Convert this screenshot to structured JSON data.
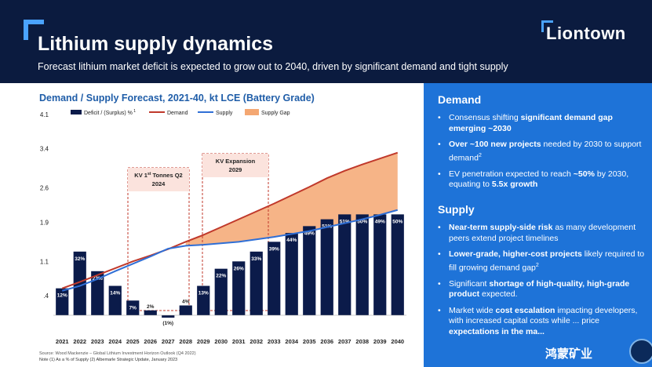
{
  "header": {
    "title": "Lithium supply dynamics",
    "subtitle": "Forecast lithium market deficit is expected to grow out to 2040, driven by significant demand and tight supply",
    "logo_text": "Liontown"
  },
  "colors": {
    "header_bg": "#0b1b3f",
    "accent": "#1e73d8",
    "bar": "#0b1b4a",
    "demand": "#c0392b",
    "supply": "#2f6fd6",
    "gap": "#f4a772"
  },
  "chart_data": {
    "type": "bar",
    "title": "Demand / Supply Forecast, 2021-40, kt LCE (Battery Grade)",
    "legend": [
      "Deficit / (Surplus) %",
      "Demand",
      "Supply",
      "Supply Gap"
    ],
    "legend_superscript": "1",
    "legend_placement": "top",
    "yticks": [
      "4.1",
      "3.4",
      "2.6",
      "1.9",
      "1.1",
      ".4"
    ],
    "ylim": [
      0.0,
      4.1
    ],
    "categories": [
      "2021",
      "2022",
      "2023",
      "2024",
      "2025",
      "2026",
      "2027",
      "2028",
      "2029",
      "2030",
      "2031",
      "2032",
      "2033",
      "2034",
      "2035",
      "2036",
      "2037",
      "2038",
      "2039",
      "2040"
    ],
    "bar_values": [
      0.55,
      1.3,
      0.9,
      0.6,
      0.3,
      0.1,
      -0.05,
      0.2,
      0.6,
      0.95,
      1.1,
      1.3,
      1.5,
      1.68,
      1.82,
      1.96,
      2.06,
      2.06,
      2.06,
      2.06
    ],
    "bar_labels": [
      "12%",
      "32%",
      "22%",
      "14%",
      "7%",
      "2%",
      "(1%)",
      "4%",
      "13%",
      "22%",
      "26%",
      "33%",
      "39%",
      "44%",
      "49%",
      "51%",
      "51%",
      "50%",
      "49%",
      "50%"
    ],
    "series": [
      {
        "name": "Demand",
        "values": [
          0.55,
          0.68,
          0.82,
          0.96,
          1.1,
          1.22,
          1.35,
          1.5,
          1.64,
          1.8,
          1.96,
          2.12,
          2.28,
          2.45,
          2.62,
          2.8,
          2.95,
          3.08,
          3.2,
          3.32
        ]
      },
      {
        "name": "Supply",
        "values": [
          0.5,
          0.6,
          0.74,
          0.9,
          1.05,
          1.2,
          1.36,
          1.42,
          1.44,
          1.47,
          1.5,
          1.55,
          1.6,
          1.66,
          1.72,
          1.8,
          1.88,
          1.96,
          2.05,
          2.15
        ]
      }
    ],
    "annotations": [
      {
        "text": "KV 1st Tonnes Q2 2024",
        "lines": [
          "KV 1",
          "st",
          " Tonnes Q2",
          "2024"
        ]
      },
      {
        "text": "KV Expansion 2029",
        "lines": [
          "KV Expansion",
          "2029"
        ]
      }
    ]
  },
  "panel": {
    "demand_heading": "Demand",
    "demand_bullets": [
      {
        "pre": "Consensus shifting ",
        "bold": "significant demand gap emerging ~2030",
        "post": ""
      },
      {
        "pre": "",
        "bold": "Over ~100 new projects",
        "post": " needed by 2030 to support demand",
        "sup": "2"
      },
      {
        "pre": "EV penetration expected to reach ",
        "bold": "~50%",
        "post": " by 2030, equating to ",
        "bold2": "5.5x growth"
      }
    ],
    "supply_heading": "Supply",
    "supply_bullets": [
      {
        "pre": "",
        "bold": "Near-term supply-side risk",
        "post": " as many development peers extend project timelines"
      },
      {
        "pre": "",
        "bold": "Lower-grade, higher-cost projects",
        "post": " likely required to fill growing demand gap",
        "sup": "2"
      },
      {
        "pre": "Significant ",
        "bold": "shortage of high-quality, high-grade product",
        "post": " expected."
      },
      {
        "pre": "Market wide ",
        "bold": "cost escalation",
        "post": " impacting developers, with increased capital costs while ... price ",
        "bold2": "expectations in the ma..."
      }
    ]
  },
  "footer": {
    "source": "Source: Wood Mackenzie – Global Lithium Investment Horizon Outlook (Q4 2022)",
    "note": "Note (1) As a % of Supply (2) Albemarle Strategic Update, January 2023",
    "watermark": "鸿蒙矿业"
  }
}
